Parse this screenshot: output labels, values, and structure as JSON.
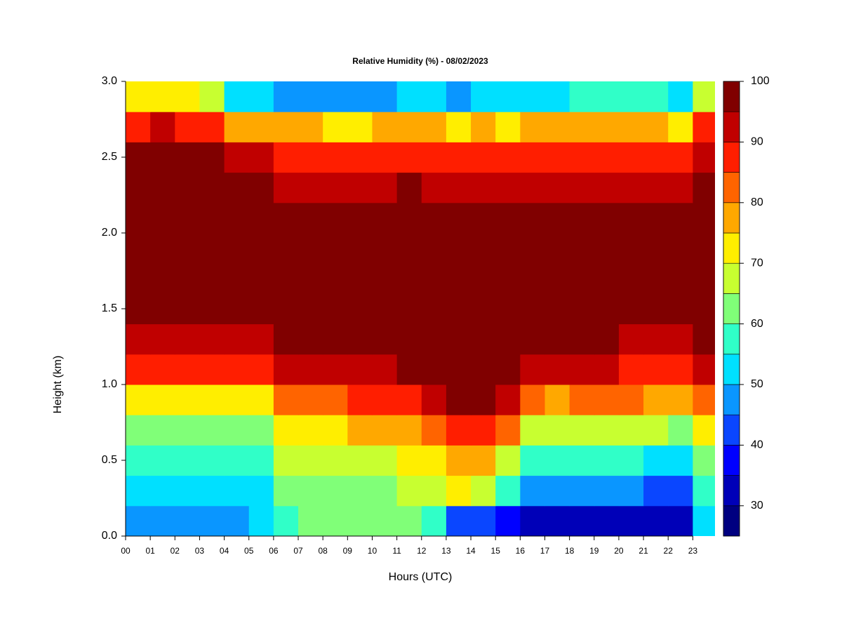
{
  "chart_data": {
    "type": "heatmap",
    "title": "Relative Humidity (%) - 08/02/2023",
    "xlabel": "Hours (UTC)",
    "ylabel": "Height (km)",
    "x": [
      0.5,
      1.5,
      2.5,
      3.5,
      4.5,
      5.5,
      6.5,
      7.5,
      8.5,
      9.5,
      10.5,
      11.5,
      12.5,
      13.5,
      14.5,
      15.5,
      16.5,
      17.5,
      18.5,
      19.5,
      20.5,
      21.5,
      22.5,
      23.5
    ],
    "y": [
      0.1,
      0.3,
      0.5,
      0.7,
      0.9,
      1.1,
      1.3,
      1.5,
      1.7,
      1.9,
      2.1,
      2.3,
      2.5,
      2.7,
      2.9
    ],
    "values": [
      [
        47,
        45,
        45,
        47,
        48,
        50,
        58,
        60,
        60,
        60,
        60,
        60,
        58,
        42,
        40,
        36,
        32,
        32,
        32,
        32,
        32,
        32,
        30,
        50
      ],
      [
        53,
        52,
        51,
        52,
        53,
        54,
        62,
        63,
        63,
        64,
        64,
        65,
        66,
        70,
        68,
        55,
        45,
        45,
        46,
        46,
        45,
        44,
        42,
        55
      ],
      [
        57,
        56,
        56,
        57,
        57,
        58,
        66,
        67,
        68,
        68,
        69,
        70,
        72,
        78,
        76,
        65,
        55,
        55,
        56,
        56,
        55,
        54,
        52,
        62
      ],
      [
        63,
        63,
        62,
        63,
        63,
        64,
        72,
        73,
        74,
        75,
        76,
        78,
        80,
        88,
        86,
        80,
        66,
        65,
        66,
        66,
        66,
        65,
        64,
        70
      ],
      [
        73,
        73,
        72,
        72,
        72,
        73,
        80,
        82,
        84,
        85,
        86,
        87,
        90,
        96,
        95,
        92,
        80,
        78,
        80,
        80,
        80,
        79,
        78,
        80
      ],
      [
        88,
        89,
        88,
        87,
        87,
        87,
        92,
        92,
        93,
        93,
        94,
        95,
        96,
        98,
        98,
        97,
        91,
        90,
        90,
        90,
        89,
        88,
        88,
        92
      ],
      [
        94,
        94,
        94,
        93,
        93,
        93,
        96,
        97,
        97,
        97,
        97,
        98,
        98,
        98,
        98,
        98,
        96,
        96,
        95,
        95,
        94,
        93,
        93,
        96
      ],
      [
        98,
        98,
        98,
        98,
        98,
        98,
        98,
        98,
        98,
        98,
        98,
        98,
        98,
        98,
        98,
        98,
        98,
        98,
        98,
        98,
        98,
        98,
        98,
        98
      ],
      [
        98,
        98,
        98,
        98,
        98,
        98,
        98,
        98,
        98,
        98,
        98,
        98,
        98,
        98,
        98,
        98,
        98,
        98,
        98,
        98,
        98,
        98,
        98,
        98
      ],
      [
        98,
        98,
        98,
        98,
        98,
        98,
        98,
        98,
        98,
        98,
        98,
        98,
        98,
        98,
        98,
        98,
        98,
        98,
        98,
        98,
        98,
        98,
        98,
        98
      ],
      [
        98,
        98,
        98,
        98,
        98,
        98,
        98,
        98,
        98,
        98,
        98,
        98,
        98,
        98,
        98,
        98,
        98,
        98,
        98,
        98,
        98,
        98,
        98,
        98
      ],
      [
        98,
        98,
        98,
        98,
        96,
        96,
        94,
        94,
        94,
        94,
        94,
        95,
        94,
        94,
        94,
        94,
        94,
        94,
        94,
        94,
        94,
        94,
        93,
        98
      ],
      [
        96,
        96,
        96,
        96,
        92,
        90,
        89,
        89,
        88,
        88,
        89,
        89,
        89,
        88,
        88,
        88,
        89,
        88,
        88,
        88,
        89,
        88,
        86,
        94
      ],
      [
        88,
        90,
        89,
        86,
        76,
        75,
        75,
        76,
        74,
        74,
        75,
        76,
        76,
        74,
        75,
        74,
        76,
        75,
        76,
        76,
        77,
        75,
        72,
        88
      ],
      [
        70,
        72,
        70,
        66,
        52,
        50,
        48,
        48,
        46,
        48,
        48,
        50,
        50,
        48,
        50,
        50,
        52,
        54,
        55,
        55,
        58,
        58,
        52,
        65
      ]
    ],
    "xlim": [
      0,
      23.9
    ],
    "ylim": [
      0,
      3.0
    ],
    "xticks": [
      {
        "value": 0,
        "label": "00"
      },
      {
        "value": 1,
        "label": "01"
      },
      {
        "value": 2,
        "label": "02"
      },
      {
        "value": 3,
        "label": "03"
      },
      {
        "value": 4,
        "label": "04"
      },
      {
        "value": 5,
        "label": "05"
      },
      {
        "value": 6,
        "label": "06"
      },
      {
        "value": 7,
        "label": "07"
      },
      {
        "value": 8,
        "label": "08"
      },
      {
        "value": 9,
        "label": "09"
      },
      {
        "value": 10,
        "label": "10"
      },
      {
        "value": 11,
        "label": "11"
      },
      {
        "value": 12,
        "label": "12"
      },
      {
        "value": 13,
        "label": "13"
      },
      {
        "value": 14,
        "label": "14"
      },
      {
        "value": 15,
        "label": "15"
      },
      {
        "value": 16,
        "label": "16"
      },
      {
        "value": 17,
        "label": "17"
      },
      {
        "value": 18,
        "label": "18"
      },
      {
        "value": 19,
        "label": "19"
      },
      {
        "value": 20,
        "label": "20"
      },
      {
        "value": 21,
        "label": "21"
      },
      {
        "value": 22,
        "label": "22"
      },
      {
        "value": 23,
        "label": "23"
      }
    ],
    "yticks": [
      {
        "value": 0,
        "label": "0.0"
      },
      0.5,
      {
        "value": 1,
        "label": "1.0"
      },
      1.5,
      {
        "value": 2,
        "label": "2.0"
      },
      2.5,
      {
        "value": 3,
        "label": "3.0"
      }
    ],
    "colorbar": {
      "levels": [
        25,
        30,
        35,
        40,
        45,
        50,
        55,
        60,
        65,
        70,
        75,
        80,
        85,
        90,
        95,
        100
      ],
      "colors": [
        "#000080",
        "#0000b8",
        "#0000ff",
        "#0a46ff",
        "#0a96ff",
        "#00e0ff",
        "#30ffc8",
        "#80ff78",
        "#c8ff30",
        "#ffee00",
        "#ffa800",
        "#ff6400",
        "#ff1e00",
        "#c00000",
        "#800000"
      ],
      "ticks": [
        30,
        40,
        50,
        60,
        70,
        80,
        90,
        100
      ]
    }
  }
}
